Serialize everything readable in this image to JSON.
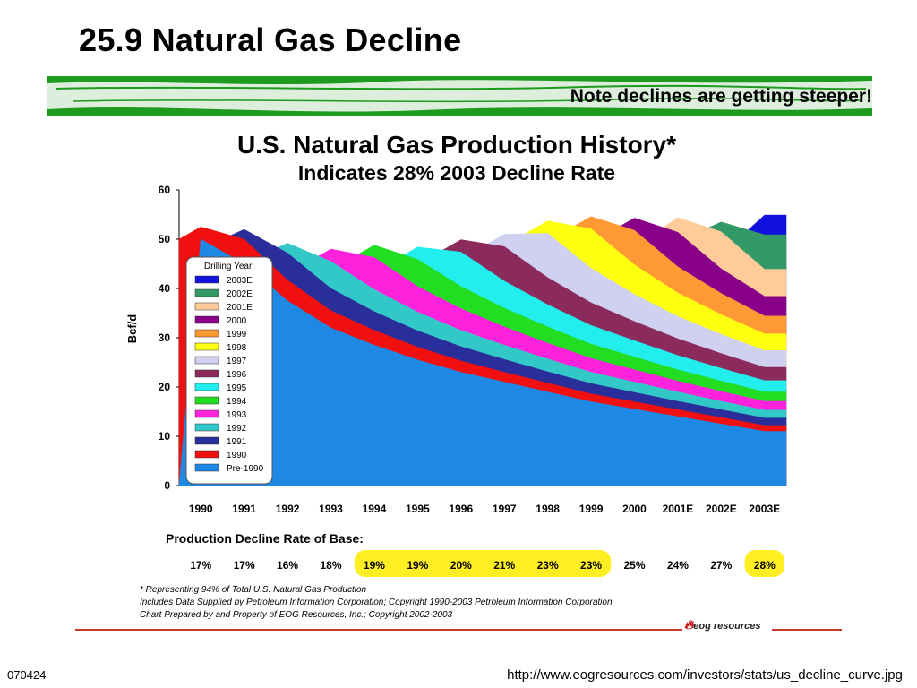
{
  "slide": {
    "title": "25.9 Natural Gas Decline",
    "banner_text": "Note declines are getting steeper!",
    "slide_number": "070424",
    "source_url": "http://www.eogresources.com/investors/stats/us_decline_curve.jpg"
  },
  "chart_data": {
    "type": "area",
    "title": "U.S. Natural Gas Production History*",
    "subtitle": "Indicates 28% 2003 Decline Rate",
    "ylabel": "Bcf/d",
    "xlabel": "",
    "ylim": [
      0,
      60
    ],
    "yticks": [
      0,
      10,
      20,
      30,
      40,
      50,
      60
    ],
    "categories": [
      "1990",
      "1991",
      "1992",
      "1993",
      "1994",
      "1995",
      "1996",
      "1997",
      "1998",
      "1999",
      "2000",
      "2001E",
      "2002E",
      "2003E"
    ],
    "legend_title": "Drilling Year:",
    "legend_position": "upper-left",
    "stacking": "stacked; each drilling-year layer starts at its year and declines",
    "series": [
      {
        "name": "Pre-1990",
        "color": "#1e88e5",
        "values": [
          50.0,
          45.0,
          37.5,
          32.0,
          28.5,
          25.5,
          23.0,
          21.0,
          19.0,
          17.0,
          15.5,
          14.0,
          12.5,
          11.0
        ]
      },
      {
        "name": "1990",
        "color": "#f01010",
        "values": [
          2.5,
          5.0,
          4.2,
          3.5,
          3.0,
          2.6,
          2.3,
          2.0,
          1.8,
          1.6,
          1.5,
          1.4,
          1.3,
          1.2
        ]
      },
      {
        "name": "1991",
        "color": "#2a2e9a",
        "values": [
          0,
          2.0,
          5.5,
          4.5,
          3.8,
          3.3,
          2.9,
          2.6,
          2.3,
          2.1,
          1.9,
          1.7,
          1.6,
          1.5
        ]
      },
      {
        "name": "1992",
        "color": "#33c8c8",
        "values": [
          0,
          0,
          2.0,
          5.5,
          4.5,
          3.8,
          3.3,
          2.9,
          2.6,
          2.3,
          2.1,
          1.9,
          1.7,
          1.6
        ]
      },
      {
        "name": "1993",
        "color": "#ff22dd",
        "values": [
          0,
          0,
          0,
          2.5,
          6.5,
          5.2,
          4.4,
          3.7,
          3.2,
          2.8,
          2.5,
          2.2,
          2.0,
          1.8
        ]
      },
      {
        "name": "1994",
        "color": "#22dd22",
        "values": [
          0,
          0,
          0,
          0,
          2.5,
          5.5,
          4.5,
          3.8,
          3.3,
          2.9,
          2.6,
          2.3,
          2.1,
          1.9
        ]
      },
      {
        "name": "1995",
        "color": "#22eeee",
        "values": [
          0,
          0,
          0,
          0,
          0,
          2.5,
          7.0,
          5.5,
          4.5,
          3.8,
          3.3,
          2.9,
          2.6,
          2.3
        ]
      },
      {
        "name": "1996",
        "color": "#8b2b5b",
        "values": [
          0,
          0,
          0,
          0,
          0,
          0,
          2.5,
          7.0,
          5.5,
          4.6,
          3.9,
          3.4,
          3.0,
          2.7
        ]
      },
      {
        "name": "1997",
        "color": "#d0d0f0",
        "values": [
          0,
          0,
          0,
          0,
          0,
          0,
          0,
          2.5,
          9.0,
          7.0,
          5.5,
          4.5,
          3.9,
          3.4
        ]
      },
      {
        "name": "1998",
        "color": "#ffff10",
        "values": [
          0,
          0,
          0,
          0,
          0,
          0,
          0,
          0,
          2.5,
          8.0,
          6.0,
          4.8,
          4.0,
          3.4
        ]
      },
      {
        "name": "1999",
        "color": "#ff9933",
        "values": [
          0,
          0,
          0,
          0,
          0,
          0,
          0,
          0,
          0,
          2.5,
          7.0,
          5.3,
          4.3,
          3.6
        ]
      },
      {
        "name": "2000",
        "color": "#880088",
        "values": [
          0,
          0,
          0,
          0,
          0,
          0,
          0,
          0,
          0,
          0,
          2.5,
          7.0,
          5.0,
          4.0
        ]
      },
      {
        "name": "2001E",
        "color": "#ffcc99",
        "values": [
          0,
          0,
          0,
          0,
          0,
          0,
          0,
          0,
          0,
          0,
          0,
          3.0,
          7.5,
          5.5
        ]
      },
      {
        "name": "2002E",
        "color": "#339966",
        "values": [
          0,
          0,
          0,
          0,
          0,
          0,
          0,
          0,
          0,
          0,
          0,
          0,
          2.0,
          7.0
        ]
      },
      {
        "name": "2003E",
        "color": "#1111dd",
        "values": [
          0,
          0,
          0,
          0,
          0,
          0,
          0,
          0,
          0,
          0,
          0,
          0,
          0,
          4.0
        ]
      }
    ],
    "decline_rate_label": "Production Decline Rate of Base:",
    "decline_rates": [
      {
        "year": "1990",
        "rate": "17%",
        "highlight": false
      },
      {
        "year": "1991",
        "rate": "17%",
        "highlight": false
      },
      {
        "year": "1992",
        "rate": "16%",
        "highlight": false
      },
      {
        "year": "1993",
        "rate": "18%",
        "highlight": false
      },
      {
        "year": "1994",
        "rate": "19%",
        "highlight": true
      },
      {
        "year": "1995",
        "rate": "19%",
        "highlight": true
      },
      {
        "year": "1996",
        "rate": "20%",
        "highlight": true
      },
      {
        "year": "1997",
        "rate": "21%",
        "highlight": true
      },
      {
        "year": "1998",
        "rate": "23%",
        "highlight": true
      },
      {
        "year": "1999",
        "rate": "23%",
        "highlight": true
      },
      {
        "year": "2000",
        "rate": "25%",
        "highlight": false
      },
      {
        "year": "2001E",
        "rate": "24%",
        "highlight": false
      },
      {
        "year": "2002E",
        "rate": "27%",
        "highlight": false
      },
      {
        "year": "2003E",
        "rate": "28%",
        "highlight": true
      }
    ],
    "highlight_color": "#ffee22",
    "footnotes": [
      "* Representing 94% of Total U.S. Natural Gas Production",
      "Includes Data Supplied by Petroleum Information Corporation; Copyright 1990-2003 Petroleum Information Corporation",
      "Chart Prepared by and Property of EOG Resources, Inc.; Copyright 2002-2003"
    ],
    "logo_text": "eog resources"
  }
}
